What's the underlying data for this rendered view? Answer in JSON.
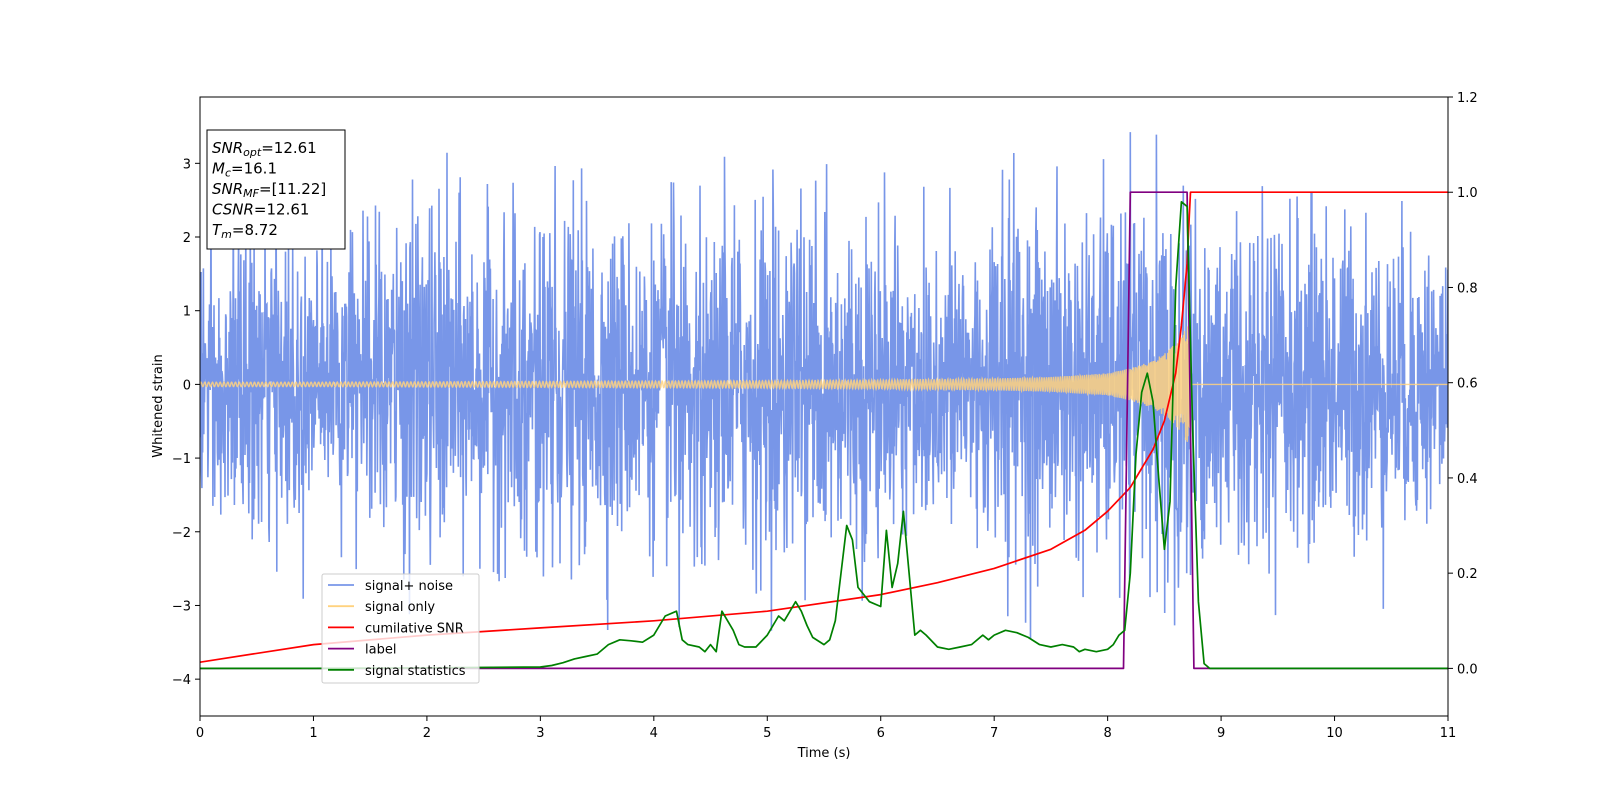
{
  "chart_data": {
    "type": "line",
    "xlabel": "Time (s)",
    "ylabel": "Whitened strain",
    "xlim": [
      0,
      11
    ],
    "ylim_left": [
      -4.5,
      3.9
    ],
    "ylim_right": [
      -0.1,
      1.2
    ],
    "x_ticks": [
      "0",
      "1",
      "2",
      "3",
      "4",
      "5",
      "6",
      "7",
      "8",
      "9",
      "10",
      "11"
    ],
    "y_ticks_left": [
      "−4",
      "−3",
      "−2",
      "−1",
      "0",
      "1",
      "2",
      "3"
    ],
    "y_ticks_right": [
      "0.0",
      "0.2",
      "0.4",
      "0.6",
      "0.8",
      "1.0",
      "1.2"
    ],
    "grid": false,
    "legend_position": "lower-left",
    "annotation": [
      {
        "base": "SNR",
        "sub": "opt",
        "value": "=12.61"
      },
      {
        "base": "M",
        "sub": "c",
        "value": "=16.1"
      },
      {
        "base": "SNR",
        "sub": "MF",
        "value": "=[11.22]"
      },
      {
        "base": "CSNR",
        "sub": "",
        "value": "=12.61"
      },
      {
        "base": "T",
        "sub": "m",
        "value": "=8.72"
      }
    ],
    "series": [
      {
        "name": "signal+ noise",
        "color": "#7896e8",
        "axis": "left",
        "description_range": [
          -4.2,
          3.55
        ],
        "x": [
          0,
          0.5,
          1,
          1.5,
          2,
          2.5,
          3,
          3.5,
          4,
          4.5,
          5,
          5.5,
          6,
          6.5,
          7,
          7.5,
          8,
          8.5,
          9,
          9.5,
          10,
          10.5,
          11
        ],
        "y_envelope": [
          2.6,
          2.8,
          2.7,
          2.6,
          3.4,
          2.8,
          3.0,
          3.1,
          2.8,
          3.3,
          3.2,
          3.0,
          3.2,
          2.9,
          3.3,
          3.0,
          3.3,
          3.55,
          3.3,
          2.9,
          3.1,
          2.7,
          2.6
        ]
      },
      {
        "name": "signal only",
        "color": "#ffd27f",
        "axis": "left",
        "x": [
          0,
          1,
          2,
          3,
          4,
          5,
          6,
          7,
          7.5,
          8,
          8.2,
          8.4,
          8.55,
          8.65,
          8.72,
          8.73,
          11
        ],
        "amplitude": [
          0.03,
          0.03,
          0.035,
          0.04,
          0.045,
          0.05,
          0.06,
          0.08,
          0.1,
          0.15,
          0.22,
          0.32,
          0.48,
          0.65,
          0.85,
          0,
          0
        ]
      },
      {
        "name": "cumilative SNR",
        "color": "#ff0000",
        "axis": "right",
        "x": [
          0,
          1,
          2,
          3,
          4,
          5,
          6,
          6.5,
          7,
          7.5,
          7.8,
          8,
          8.2,
          8.4,
          8.5,
          8.6,
          8.65,
          8.7,
          8.72,
          8.73,
          11
        ],
        "y": [
          0.013,
          0.05,
          0.07,
          0.085,
          0.1,
          0.12,
          0.155,
          0.18,
          0.21,
          0.25,
          0.29,
          0.33,
          0.38,
          0.46,
          0.52,
          0.62,
          0.72,
          0.85,
          0.95,
          1.0,
          1.0
        ]
      },
      {
        "name": "label",
        "color": "#800080",
        "axis": "right",
        "x": [
          0,
          8.14,
          8.2,
          8.7,
          8.76,
          11
        ],
        "y": [
          0,
          0,
          1,
          1,
          0,
          0
        ]
      },
      {
        "name": "signal statistics",
        "color": "#008000",
        "axis": "right",
        "x": [
          0,
          1,
          2,
          3,
          3.1,
          3.2,
          3.3,
          3.4,
          3.5,
          3.6,
          3.7,
          3.8,
          3.9,
          4.0,
          4.1,
          4.2,
          4.25,
          4.3,
          4.4,
          4.45,
          4.5,
          4.55,
          4.6,
          4.65,
          4.7,
          4.75,
          4.8,
          4.9,
          5.0,
          5.1,
          5.15,
          5.2,
          5.25,
          5.3,
          5.35,
          5.4,
          5.5,
          5.55,
          5.6,
          5.65,
          5.7,
          5.75,
          5.8,
          5.9,
          6.0,
          6.05,
          6.1,
          6.15,
          6.2,
          6.25,
          6.3,
          6.35,
          6.4,
          6.5,
          6.6,
          6.7,
          6.8,
          6.9,
          6.95,
          7.0,
          7.1,
          7.2,
          7.3,
          7.4,
          7.5,
          7.6,
          7.7,
          7.75,
          7.8,
          7.9,
          8.0,
          8.05,
          8.1,
          8.15,
          8.2,
          8.25,
          8.3,
          8.35,
          8.4,
          8.45,
          8.5,
          8.55,
          8.6,
          8.65,
          8.7,
          8.75,
          8.8,
          8.85,
          8.9,
          9,
          10,
          11
        ],
        "y": [
          0,
          0,
          0.001,
          0.003,
          0.006,
          0.012,
          0.02,
          0.025,
          0.03,
          0.05,
          0.06,
          0.058,
          0.055,
          0.07,
          0.11,
          0.12,
          0.06,
          0.05,
          0.045,
          0.035,
          0.05,
          0.035,
          0.12,
          0.1,
          0.08,
          0.05,
          0.045,
          0.045,
          0.07,
          0.11,
          0.1,
          0.12,
          0.14,
          0.12,
          0.09,
          0.065,
          0.05,
          0.06,
          0.1,
          0.2,
          0.3,
          0.27,
          0.17,
          0.14,
          0.13,
          0.29,
          0.17,
          0.22,
          0.33,
          0.2,
          0.07,
          0.08,
          0.07,
          0.045,
          0.04,
          0.045,
          0.05,
          0.07,
          0.06,
          0.07,
          0.08,
          0.075,
          0.065,
          0.05,
          0.045,
          0.05,
          0.045,
          0.035,
          0.04,
          0.035,
          0.04,
          0.05,
          0.07,
          0.08,
          0.2,
          0.45,
          0.58,
          0.62,
          0.56,
          0.4,
          0.25,
          0.35,
          0.8,
          0.98,
          0.97,
          0.5,
          0.14,
          0.01,
          0,
          0,
          0,
          0
        ]
      }
    ]
  }
}
